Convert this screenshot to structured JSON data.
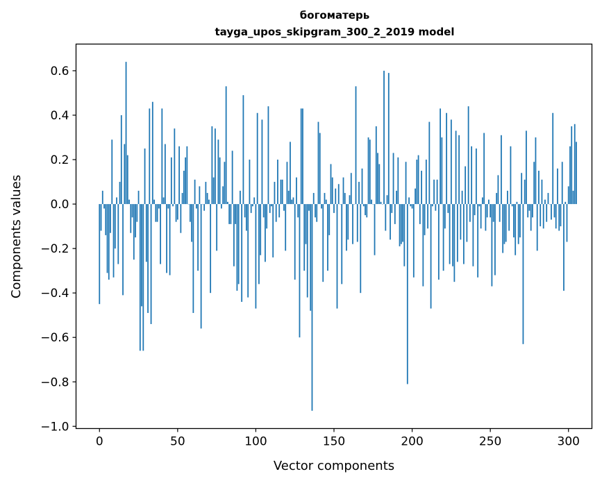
{
  "chart_data": {
    "type": "bar",
    "title": "богоматерь",
    "subtitle": "tayga_upos_skipgram_300_2_2019 model",
    "xlabel": "Vector components",
    "ylabel": "Components values",
    "xlim": [
      -15,
      315
    ],
    "ylim": [
      -1.01,
      0.72
    ],
    "x_ticks": [
      0,
      50,
      100,
      150,
      200,
      250,
      300
    ],
    "x_tick_labels": [
      "0",
      "50",
      "100",
      "150",
      "200",
      "250",
      "300"
    ],
    "y_ticks": [
      0.6,
      0.4,
      0.2,
      0.0,
      -0.2,
      -0.4,
      -0.6,
      -0.8,
      -1.0
    ],
    "y_tick_labels": [
      "0.6",
      "0.4",
      "0.2",
      "0.0",
      "−0.2",
      "−0.4",
      "−0.6",
      "−0.8",
      "−1.0"
    ],
    "bar_color": "#1f77b4",
    "grid": false,
    "series": [
      {
        "name": "components",
        "values": [
          -0.45,
          -0.12,
          0.06,
          -0.02,
          -0.14,
          -0.31,
          -0.34,
          -0.13,
          0.29,
          -0.33,
          -0.2,
          0.03,
          -0.27,
          0.1,
          0.4,
          -0.41,
          0.27,
          0.64,
          0.22,
          0.02,
          -0.13,
          -0.06,
          -0.25,
          -0.15,
          -0.08,
          0.06,
          -0.66,
          -0.46,
          -0.66,
          0.25,
          -0.26,
          -0.49,
          0.43,
          -0.54,
          0.46,
          0.02,
          -0.08,
          -0.08,
          -0.02,
          -0.27,
          0.43,
          0.03,
          0.27,
          -0.31,
          -0.02,
          -0.32,
          0.21,
          -0.01,
          0.34,
          -0.08,
          -0.07,
          0.26,
          -0.13,
          0.05,
          0.15,
          0.21,
          0.26,
          0.0,
          -0.08,
          -0.17,
          -0.49,
          0.11,
          -0.02,
          -0.3,
          0.08,
          -0.56,
          0.0,
          -0.03,
          0.1,
          0.05,
          0.02,
          -0.4,
          0.35,
          0.12,
          0.34,
          -0.21,
          0.29,
          0.21,
          -0.02,
          0.08,
          0.19,
          0.53,
          0.01,
          -0.09,
          -0.09,
          0.24,
          -0.28,
          -0.09,
          -0.39,
          -0.36,
          0.06,
          -0.44,
          0.49,
          -0.06,
          -0.12,
          -0.42,
          0.2,
          -0.04,
          -0.01,
          0.03,
          -0.47,
          0.41,
          -0.36,
          -0.23,
          0.38,
          -0.06,
          -0.26,
          -0.11,
          0.44,
          -0.04,
          -0.01,
          -0.24,
          0.1,
          -0.08,
          0.2,
          -0.06,
          0.11,
          0.11,
          -0.03,
          -0.21,
          0.19,
          0.06,
          0.28,
          0.02,
          0.03,
          -0.34,
          0.12,
          -0.06,
          -0.6,
          0.43,
          0.43,
          -0.3,
          -0.18,
          -0.42,
          -0.03,
          -0.48,
          -0.93,
          0.05,
          -0.06,
          -0.08,
          0.37,
          0.32,
          -0.02,
          -0.35,
          0.05,
          0.02,
          -0.3,
          -0.14,
          0.18,
          0.12,
          -0.04,
          0.07,
          -0.47,
          0.09,
          0.0,
          -0.36,
          0.12,
          0.05,
          -0.21,
          -0.16,
          0.04,
          0.14,
          -0.18,
          0.0,
          0.53,
          -0.17,
          0.1,
          -0.4,
          0.16,
          -0.01,
          -0.05,
          -0.06,
          0.3,
          0.29,
          0.02,
          0.0,
          -0.23,
          0.35,
          0.23,
          0.18,
          0.01,
          0.0,
          0.6,
          -0.12,
          0.04,
          0.59,
          -0.16,
          -0.04,
          0.23,
          -0.09,
          0.06,
          0.21,
          -0.19,
          -0.18,
          -0.17,
          -0.28,
          0.19,
          -0.81,
          0.03,
          -0.01,
          -0.02,
          -0.33,
          0.07,
          0.2,
          0.22,
          -0.09,
          0.15,
          -0.37,
          -0.14,
          0.2,
          -0.11,
          0.37,
          -0.47,
          -0.01,
          0.11,
          -0.03,
          0.11,
          -0.34,
          0.43,
          0.3,
          -0.3,
          -0.11,
          0.41,
          -0.04,
          -0.27,
          0.38,
          -0.28,
          -0.35,
          0.33,
          -0.26,
          0.31,
          -0.16,
          0.06,
          -0.27,
          0.17,
          -0.17,
          0.44,
          -0.08,
          0.26,
          -0.28,
          -0.05,
          0.25,
          -0.33,
          -0.01,
          -0.11,
          0.03,
          0.32,
          -0.12,
          -0.06,
          0.02,
          -0.06,
          -0.37,
          -0.08,
          -0.32,
          0.05,
          0.13,
          -0.08,
          0.31,
          -0.22,
          -0.18,
          -0.17,
          0.06,
          -0.12,
          0.26,
          -0.01,
          -0.15,
          -0.23,
          0.01,
          -0.18,
          -0.15,
          0.14,
          -0.63,
          0.11,
          0.33,
          -0.06,
          -0.03,
          -0.12,
          -0.06,
          0.19,
          0.3,
          -0.21,
          0.15,
          -0.1,
          0.11,
          -0.11,
          0.02,
          -0.08,
          0.05,
          0.0,
          -0.07,
          0.41,
          -0.06,
          -0.11,
          0.16,
          -0.12,
          -0.1,
          0.19,
          -0.39,
          0.01,
          -0.17,
          0.08,
          0.26,
          0.35,
          0.06,
          0.36,
          0.28
        ]
      }
    ]
  }
}
